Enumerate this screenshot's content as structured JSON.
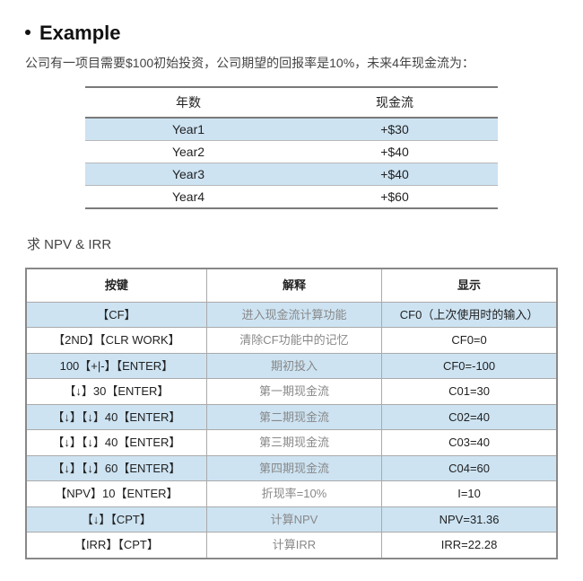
{
  "heading": "Example",
  "problem": "公司有一项目需要$100初始投资，公司期望的回报率是10%，未来4年现金流为：",
  "table1": {
    "headers": [
      "年数",
      "现金流"
    ],
    "rows": [
      {
        "cells": [
          "Year1",
          "+$30"
        ],
        "highlight": true
      },
      {
        "cells": [
          "Year2",
          "+$40"
        ],
        "highlight": false
      },
      {
        "cells": [
          "Year3",
          "+$40"
        ],
        "highlight": true
      },
      {
        "cells": [
          "Year4",
          "+$60"
        ],
        "highlight": false
      }
    ],
    "col_widths": [
      "50%",
      "50%"
    ]
  },
  "subheading": "求 NPV & IRR",
  "table2": {
    "headers": [
      "按键",
      "解释",
      "显示"
    ],
    "col_widths": [
      "34%",
      "33%",
      "33%"
    ],
    "rows": [
      {
        "cells": [
          "【CF】",
          "进入现金流计算功能",
          "CF0（上次使用时的输入）"
        ],
        "highlight": true
      },
      {
        "cells": [
          "【2ND】【CLR WORK】",
          "清除CF功能中的记忆",
          "CF0=0"
        ],
        "highlight": false
      },
      {
        "cells": [
          "100【+|-】【ENTER】",
          "期初投入",
          "CF0=-100"
        ],
        "highlight": true
      },
      {
        "cells": [
          "【↓】30【ENTER】",
          "第一期现金流",
          "C01=30"
        ],
        "highlight": false
      },
      {
        "cells": [
          "【↓】【↓】40【ENTER】",
          "第二期现金流",
          "C02=40"
        ],
        "highlight": true
      },
      {
        "cells": [
          "【↓】【↓】40【ENTER】",
          "第三期现金流",
          "C03=40"
        ],
        "highlight": false
      },
      {
        "cells": [
          "【↓】【↓】60【ENTER】",
          "第四期现金流",
          "C04=60"
        ],
        "highlight": true
      },
      {
        "cells": [
          "【NPV】10【ENTER】",
          "折现率=10%",
          "I=10"
        ],
        "highlight": false
      },
      {
        "cells": [
          "【↓】【CPT】",
          "计算NPV",
          "NPV=31.36"
        ],
        "highlight": true
      },
      {
        "cells": [
          "【IRR】【CPT】",
          "计算IRR",
          "IRR=22.28"
        ],
        "highlight": false
      }
    ]
  },
  "colors": {
    "highlight_bg": "#cde3f2",
    "rule_dark": "#7a7a7a",
    "rule_light": "#aaaaaa",
    "muted_text": "#888888"
  }
}
